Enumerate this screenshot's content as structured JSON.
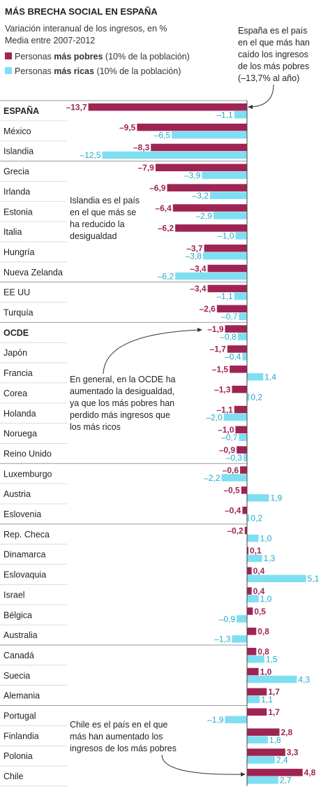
{
  "title": "MÁS BRECHA SOCIAL EN ESPAÑA",
  "subtitle_lines": [
    "Variación interanual de los ingresos, en %",
    "Media entre 2007-2012"
  ],
  "legend": [
    {
      "bold": "más pobres",
      "prefix": "Personas ",
      "suffix": "  (10% de la población)",
      "color": "#9e2553"
    },
    {
      "bold": "más ricas",
      "prefix": "Personas ",
      "suffix": " (10% de la población)",
      "color": "#7fdff2"
    }
  ],
  "annotations": {
    "spain": [
      "España es el país",
      "en el que más han",
      "caído los ingresos",
      "de los más pobres",
      "(–13,7% al año)"
    ],
    "iceland": [
      "Islandia es el país",
      "en el que más se",
      "ha reducido la",
      "desigualdad"
    ],
    "oecd": [
      "En general, en la OCDE ha",
      "aumentado la desigualdad,",
      "ya que los más pobres han",
      "perdido más ingresos que",
      "los más ricos"
    ],
    "chile": [
      "Chile es el país en el que",
      "más han aumentado los",
      "ingresos de los más pobres"
    ]
  },
  "chart_data": {
    "type": "bar",
    "orientation": "horizontal",
    "title": "MÁS BRECHA SOCIAL EN ESPAÑA",
    "unit": "%",
    "categories": [
      "ESPAÑA",
      "México",
      "Islandia",
      "Grecia",
      "Irlanda",
      "Estonia",
      "Italia",
      "Hungría",
      "Nueva Zelanda",
      "EE UU",
      "Turquía",
      "OCDE",
      "Japón",
      "Francia",
      "Corea",
      "Holanda",
      "Noruega",
      "Reino Unido",
      "Luxemburgo",
      "Austria",
      "Eslovenia",
      "Rep. Checa",
      "Dinamarca",
      "Eslovaquia",
      "Israel",
      "Bélgica",
      "Australia",
      "Canadá",
      "Suecia",
      "Alemania",
      "Portugal",
      "Finlandia",
      "Polonia",
      "Chile"
    ],
    "bold_categories": [
      "ESPAÑA",
      "OCDE"
    ],
    "series": [
      {
        "name": "Personas más pobres (10% de la población)",
        "color": "#9e2553",
        "values": [
          -13.7,
          -9.5,
          -8.3,
          -7.9,
          -6.9,
          -6.4,
          -6.2,
          -3.7,
          -3.4,
          -3.4,
          -2.6,
          -1.9,
          -1.7,
          -1.5,
          -1.3,
          -1.1,
          -1.0,
          -0.9,
          -0.6,
          -0.5,
          -0.4,
          -0.2,
          0.1,
          0.4,
          0.4,
          0.5,
          0.8,
          0.8,
          1.0,
          1.7,
          1.7,
          2.8,
          3.3,
          4.8
        ],
        "labels": [
          "–13,7",
          "–9,5",
          "–8,3",
          "–7,9",
          "–6,9",
          "–6,4",
          "–6,2",
          "–3,7",
          "–3,4",
          "–3,4",
          "–2,6",
          "–1,9",
          "–1,7",
          "–1,5",
          "–1,3",
          "–1,1",
          "–1,0",
          "–0,9",
          "–0,6",
          "–0,5",
          "–0,4",
          "–0,2",
          "0,1",
          "0,4",
          "0,4",
          "0,5",
          "0,8",
          "0,8",
          "1,0",
          "1,7",
          "1,7",
          "2,8",
          "3,3",
          "4,8"
        ]
      },
      {
        "name": "Personas más ricas (10% de la población)",
        "color": "#7fdff2",
        "values": [
          -1.1,
          -6.5,
          -12.5,
          -3.9,
          -3.2,
          -2.9,
          -1.0,
          -3.8,
          -6.2,
          -1.1,
          -0.7,
          -0.8,
          -0.4,
          1.4,
          0.2,
          -2.0,
          -0.7,
          -0.3,
          -2.2,
          1.9,
          0.2,
          1.0,
          1.3,
          5.1,
          1.0,
          -0.9,
          -1.3,
          1.5,
          4.3,
          1.1,
          -1.9,
          1.8,
          2.4,
          2.7
        ],
        "labels": [
          "–1,1",
          "–6,5",
          "–12,5",
          "–3,9",
          "–3,2",
          "–2,9",
          "–1,0",
          "–3,8",
          "–6,2",
          "–1,1",
          "–0,7",
          "–0,8",
          "–0,4",
          "1,4",
          "0,2",
          "–2,0",
          "–0,7",
          "–0,3",
          "–2,2",
          "1,9",
          "0,2",
          "1,0",
          "1,3",
          "5,1",
          "1,0",
          "–0,9",
          "–1,3",
          "1,5",
          "4,3",
          "1,1",
          "–1,9",
          "1,8",
          "2,4",
          "2,7"
        ]
      }
    ],
    "group_breaks_after": [
      "Islandia",
      "Nueva Zelanda",
      "Turquía",
      "Reino Unido",
      "Eslovenia",
      "Australia",
      "Alemania"
    ],
    "xlim": [
      -13.7,
      5.1
    ]
  }
}
